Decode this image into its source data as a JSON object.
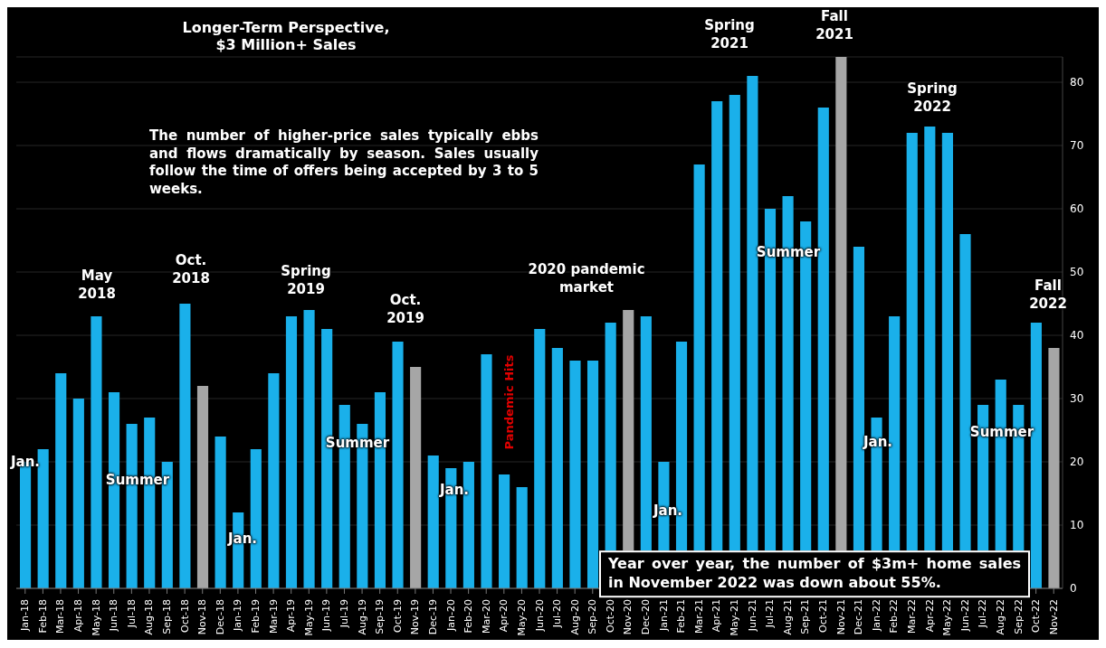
{
  "chart_data": {
    "type": "bar",
    "title": "Longer-Term Perspective, $3 Million+ Sales",
    "categories": [
      "Jan-18",
      "Feb-18",
      "Mar-18",
      "Apr-18",
      "May-18",
      "Jun-18",
      "Jul-18",
      "Aug-18",
      "Sep-18",
      "Oct-18",
      "Nov-18",
      "Dec-18",
      "Jan-19",
      "Feb-19",
      "Mar-19",
      "Apr-19",
      "May-19",
      "Jun-19",
      "Jul-19",
      "Aug-19",
      "Sep-19",
      "Oct-19",
      "Nov-19",
      "Dec-19",
      "Jan-20",
      "Feb-20",
      "Mar-20",
      "Apr-20",
      "May-20",
      "Jun-20",
      "Jul-20",
      "Aug-20",
      "Sep-20",
      "Oct-20",
      "Nov-20",
      "Dec-20",
      "Jan-21",
      "Feb-21",
      "Mar-21",
      "Apr-21",
      "May-21",
      "Jun-21",
      "Jul-21",
      "Aug-21",
      "Sep-21",
      "Oct-21",
      "Nov-21",
      "Dec-21",
      "Jan-22",
      "Feb-22",
      "Mar-22",
      "Apr-22",
      "May-22",
      "Jun-22",
      "Jul-22",
      "Aug-22",
      "Sep-22",
      "Oct-22",
      "Nov-22"
    ],
    "values": [
      20,
      22,
      34,
      30,
      43,
      31,
      26,
      27,
      20,
      45,
      32,
      24,
      12,
      22,
      34,
      43,
      44,
      41,
      29,
      26,
      31,
      39,
      35,
      21,
      19,
      20,
      37,
      18,
      16,
      41,
      38,
      36,
      36,
      42,
      44,
      43,
      20,
      39,
      67,
      77,
      78,
      81,
      60,
      62,
      58,
      76,
      84,
      54,
      27,
      43,
      72,
      73,
      72,
      56,
      29,
      33,
      29,
      42,
      38
    ],
    "colors": [
      "#1ab0ea",
      "#1ab0ea",
      "#1ab0ea",
      "#1ab0ea",
      "#1ab0ea",
      "#1ab0ea",
      "#1ab0ea",
      "#1ab0ea",
      "#1ab0ea",
      "#1ab0ea",
      "#a6a6a6",
      "#1ab0ea",
      "#1ab0ea",
      "#1ab0ea",
      "#1ab0ea",
      "#1ab0ea",
      "#1ab0ea",
      "#1ab0ea",
      "#1ab0ea",
      "#1ab0ea",
      "#1ab0ea",
      "#1ab0ea",
      "#a6a6a6",
      "#1ab0ea",
      "#1ab0ea",
      "#1ab0ea",
      "#1ab0ea",
      "#1ab0ea",
      "#1ab0ea",
      "#1ab0ea",
      "#1ab0ea",
      "#1ab0ea",
      "#1ab0ea",
      "#1ab0ea",
      "#a6a6a6",
      "#1ab0ea",
      "#1ab0ea",
      "#1ab0ea",
      "#1ab0ea",
      "#1ab0ea",
      "#1ab0ea",
      "#1ab0ea",
      "#1ab0ea",
      "#1ab0ea",
      "#1ab0ea",
      "#1ab0ea",
      "#a6a6a6",
      "#1ab0ea",
      "#1ab0ea",
      "#1ab0ea",
      "#1ab0ea",
      "#1ab0ea",
      "#1ab0ea",
      "#1ab0ea",
      "#1ab0ea",
      "#1ab0ea",
      "#1ab0ea",
      "#1ab0ea",
      "#a6a6a6"
    ],
    "ylim": [
      0,
      84
    ],
    "yticks": [
      0,
      10,
      20,
      30,
      40,
      50,
      60,
      70,
      80
    ],
    "grid": "y",
    "annotations": [
      "The number of higher-price sales typically ebbs and flows dramatically by season. Sales usually follow the time of offers being accepted by 3 to 5 weeks.",
      "Year over year, the number of $3m+ home sales in November 2022 was down about 55%.",
      "Jan.",
      "Summer",
      "May 2018",
      "Oct. 2018",
      "Jan.",
      "Spring 2019",
      "Summer",
      "Oct. 2019",
      "Jan.",
      "Pandemic Hits",
      "2020 pandemic market",
      "Jan.",
      "Spring 2021",
      "Summer",
      "Fall 2021",
      "Jan.",
      "Spring 2022",
      "Summer",
      "Fall 2022"
    ]
  }
}
